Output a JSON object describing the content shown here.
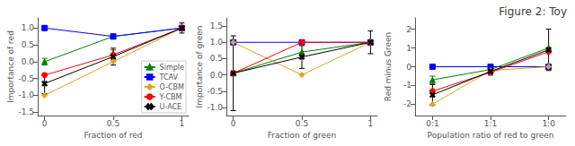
{
  "title": "Figure 2: Toy",
  "chart_data": [
    {
      "type": "line",
      "xlabel": "Fraction of red",
      "ylabel": "Importance of red",
      "x": [
        0,
        0.5,
        1
      ],
      "xlim": [
        -0.05,
        1.05
      ],
      "xticks": [
        0,
        0.5,
        1
      ],
      "ylim": [
        -1.6,
        1.3
      ],
      "yticks": [
        -1.5,
        {
          "value": -1.0,
          "label": "-1.0"
        },
        -0.5,
        {
          "value": 0.0,
          "label": "0.0"
        },
        0.5,
        {
          "value": 1.0,
          "label": "1.0"
        }
      ],
      "grid": false,
      "legend": "lower right",
      "series": [
        {
          "name": "Simple",
          "color": "green",
          "marker": "triangle",
          "values": [
            0.0,
            0.75,
            1.0
          ],
          "yerr": [
            0.1,
            0.0,
            0.0
          ]
        },
        {
          "name": "TCAV",
          "color": "blue",
          "marker": "square",
          "values": [
            1.0,
            0.75,
            1.0
          ],
          "yerr": [
            0.0,
            0.0,
            0.0
          ]
        },
        {
          "name": "O-CBM",
          "color": "goldenrod",
          "marker": "diamond",
          "values": [
            -1.0,
            0.0,
            1.0
          ],
          "yerr": [
            0.0,
            0.0,
            0.0
          ]
        },
        {
          "name": "Y-CBM",
          "color": "red",
          "marker": "circle",
          "values": [
            -0.4,
            0.2,
            1.0
          ],
          "yerr": [
            0.0,
            0.15,
            0.0
          ]
        },
        {
          "name": "U-ACE",
          "color": "black",
          "marker": "x",
          "values": [
            -0.65,
            0.15,
            1.0
          ],
          "yerr": [
            0.3,
            0.25,
            0.15
          ]
        }
      ]
    },
    {
      "type": "line",
      "xlabel": "Fraction of green",
      "ylabel": "Importance of green",
      "x": [
        0,
        0.5,
        1
      ],
      "xlim": [
        -0.05,
        1.05
      ],
      "xticks": [
        0,
        0.5,
        1
      ],
      "ylim": [
        -1.25,
        1.75
      ],
      "yticks": [
        {
          "value": -1.0,
          "label": "-1.0"
        },
        -0.5,
        {
          "value": 0.0,
          "label": "0.0"
        },
        0.5,
        {
          "value": 1.0,
          "label": "1.0"
        },
        1.5
      ],
      "grid": false,
      "series": [
        {
          "name": "Simple",
          "color": "green",
          "marker": "triangle",
          "values": [
            0.05,
            0.7,
            1.0
          ],
          "yerr": [
            0.0,
            0.0,
            0.0
          ]
        },
        {
          "name": "TCAV",
          "color": "blue",
          "marker": "square",
          "values": [
            1.0,
            1.0,
            1.0
          ],
          "yerr": [
            0.0,
            0.0,
            0.0
          ]
        },
        {
          "name": "O-CBM",
          "color": "goldenrod",
          "marker": "diamond",
          "values": [
            1.0,
            0.0,
            1.0
          ],
          "yerr": [
            0.0,
            0.0,
            0.0
          ]
        },
        {
          "name": "Y-CBM",
          "color": "red",
          "marker": "circle",
          "values": [
            0.05,
            1.0,
            1.0
          ],
          "yerr": [
            0.0,
            0.0,
            0.0
          ]
        },
        {
          "name": "U-ACE",
          "color": "black",
          "marker": "x",
          "values": [
            0.05,
            0.55,
            1.0
          ],
          "yerr": [
            1.15,
            0.35,
            0.35
          ]
        }
      ]
    },
    {
      "type": "line",
      "xlabel": "Population ratio of red to green",
      "ylabel": "Red minus Green",
      "x": [
        0,
        1,
        2
      ],
      "xlim": [
        -0.3,
        2.3
      ],
      "xticks": [
        {
          "value": 0,
          "label": "0:1"
        },
        {
          "value": 1,
          "label": "1:1"
        },
        {
          "value": 2,
          "label": "1:0"
        }
      ],
      "ylim": [
        -2.6,
        2.6
      ],
      "yticks": [
        -2,
        -1,
        0,
        1,
        2
      ],
      "grid": false,
      "series": [
        {
          "name": "Simple",
          "color": "green",
          "marker": "triangle",
          "values": [
            -0.7,
            -0.15,
            1.0
          ],
          "yerr": [
            0.2,
            0.0,
            0.0
          ]
        },
        {
          "name": "TCAV",
          "color": "blue",
          "marker": "square",
          "values": [
            0.0,
            0.0,
            0.0
          ],
          "yerr": [
            0.0,
            0.0,
            0.0
          ]
        },
        {
          "name": "O-CBM",
          "color": "goldenrod",
          "marker": "diamond",
          "values": [
            -2.0,
            -0.2,
            0.0
          ],
          "yerr": [
            0.0,
            0.0,
            0.0
          ]
        },
        {
          "name": "Y-CBM",
          "color": "red",
          "marker": "circle",
          "values": [
            -1.3,
            -0.3,
            0.8
          ],
          "yerr": [
            0.0,
            0.0,
            0.0
          ]
        },
        {
          "name": "U-ACE",
          "color": "black",
          "marker": "x",
          "values": [
            -1.5,
            -0.25,
            0.9
          ],
          "yerr": [
            0.55,
            0.2,
            1.1
          ]
        }
      ]
    }
  ]
}
